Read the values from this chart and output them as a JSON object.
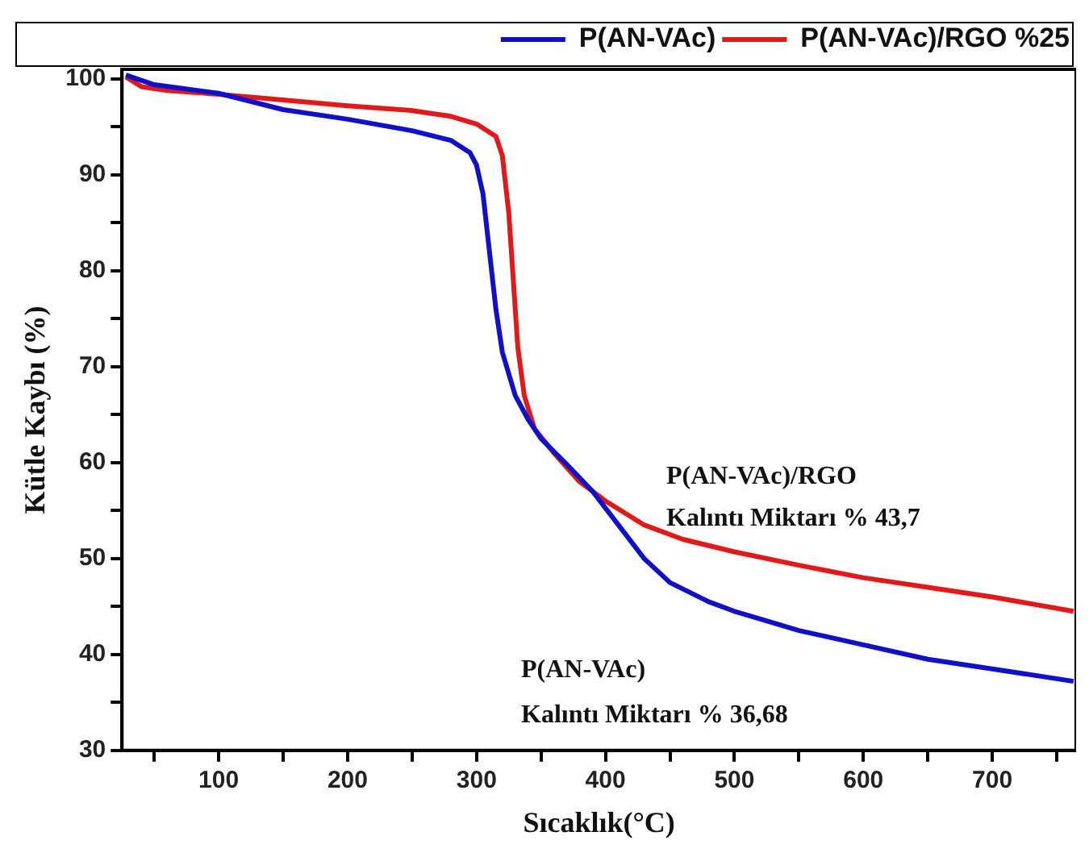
{
  "chart_data": {
    "type": "line",
    "xlabel": "Sıcaklık(°C)",
    "ylabel": "Kütle Kaybı (%)",
    "xlim": [
      25,
      765
    ],
    "ylim": [
      30,
      101
    ],
    "xticks": [
      {
        "value": 50,
        "label": null
      },
      100,
      {
        "value": 150,
        "label": null
      },
      200,
      {
        "value": 250,
        "label": null
      },
      300,
      {
        "value": 350,
        "label": null
      },
      400,
      {
        "value": 450,
        "label": null
      },
      500,
      {
        "value": 550,
        "label": null
      },
      600,
      {
        "value": 650,
        "label": null
      },
      700,
      {
        "value": 750,
        "label": null
      }
    ],
    "yticks": [
      30,
      {
        "value": 35,
        "label": null
      },
      40,
      {
        "value": 45,
        "label": null
      },
      50,
      {
        "value": 55,
        "label": null
      },
      60,
      {
        "value": 65,
        "label": null
      },
      70,
      {
        "value": 75,
        "label": null
      },
      80,
      {
        "value": 85,
        "label": null
      },
      90,
      {
        "value": 95,
        "label": null
      },
      100
    ],
    "grid": false,
    "legend": "top right",
    "marker": "none",
    "line_style": "solid",
    "annotations": [
      "P(AN-VAc)/RGO",
      "Kalıntı Miktarı % 43,7",
      "P(AN-VAc)",
      "Kalıntı Miktarı % 36,68"
    ],
    "series": [
      {
        "name": "P(AN-VAc)",
        "color": "#1010c8",
        "x": [
          28,
          50,
          100,
          150,
          200,
          250,
          280,
          295,
          300,
          305,
          310,
          315,
          320,
          330,
          340,
          350,
          370,
          390,
          410,
          430,
          450,
          480,
          500,
          550,
          600,
          650,
          700,
          763
        ],
        "values": [
          100.4,
          99.4,
          98.5,
          96.8,
          95.8,
          94.6,
          93.6,
          92.3,
          91,
          88,
          82,
          76,
          71.5,
          67,
          64.5,
          62.5,
          59.8,
          57,
          53.5,
          50,
          47.5,
          45.5,
          44.5,
          42.5,
          41,
          39.5,
          38.5,
          37.2
        ]
      },
      {
        "name": "P(AN-VAc)/RGO %25",
        "color": "#e01a1a",
        "x": [
          28,
          40,
          60,
          100,
          150,
          200,
          250,
          280,
          300,
          315,
          320,
          325,
          328,
          332,
          337,
          345,
          360,
          380,
          400,
          430,
          460,
          500,
          550,
          600,
          650,
          700,
          763
        ],
        "values": [
          100.2,
          99.2,
          98.8,
          98.4,
          97.8,
          97.2,
          96.7,
          96.1,
          95.3,
          94,
          92,
          86,
          80,
          72,
          67,
          63.5,
          61,
          58,
          56,
          53.5,
          52,
          50.7,
          49.3,
          48,
          47,
          46,
          44.5
        ]
      }
    ]
  }
}
